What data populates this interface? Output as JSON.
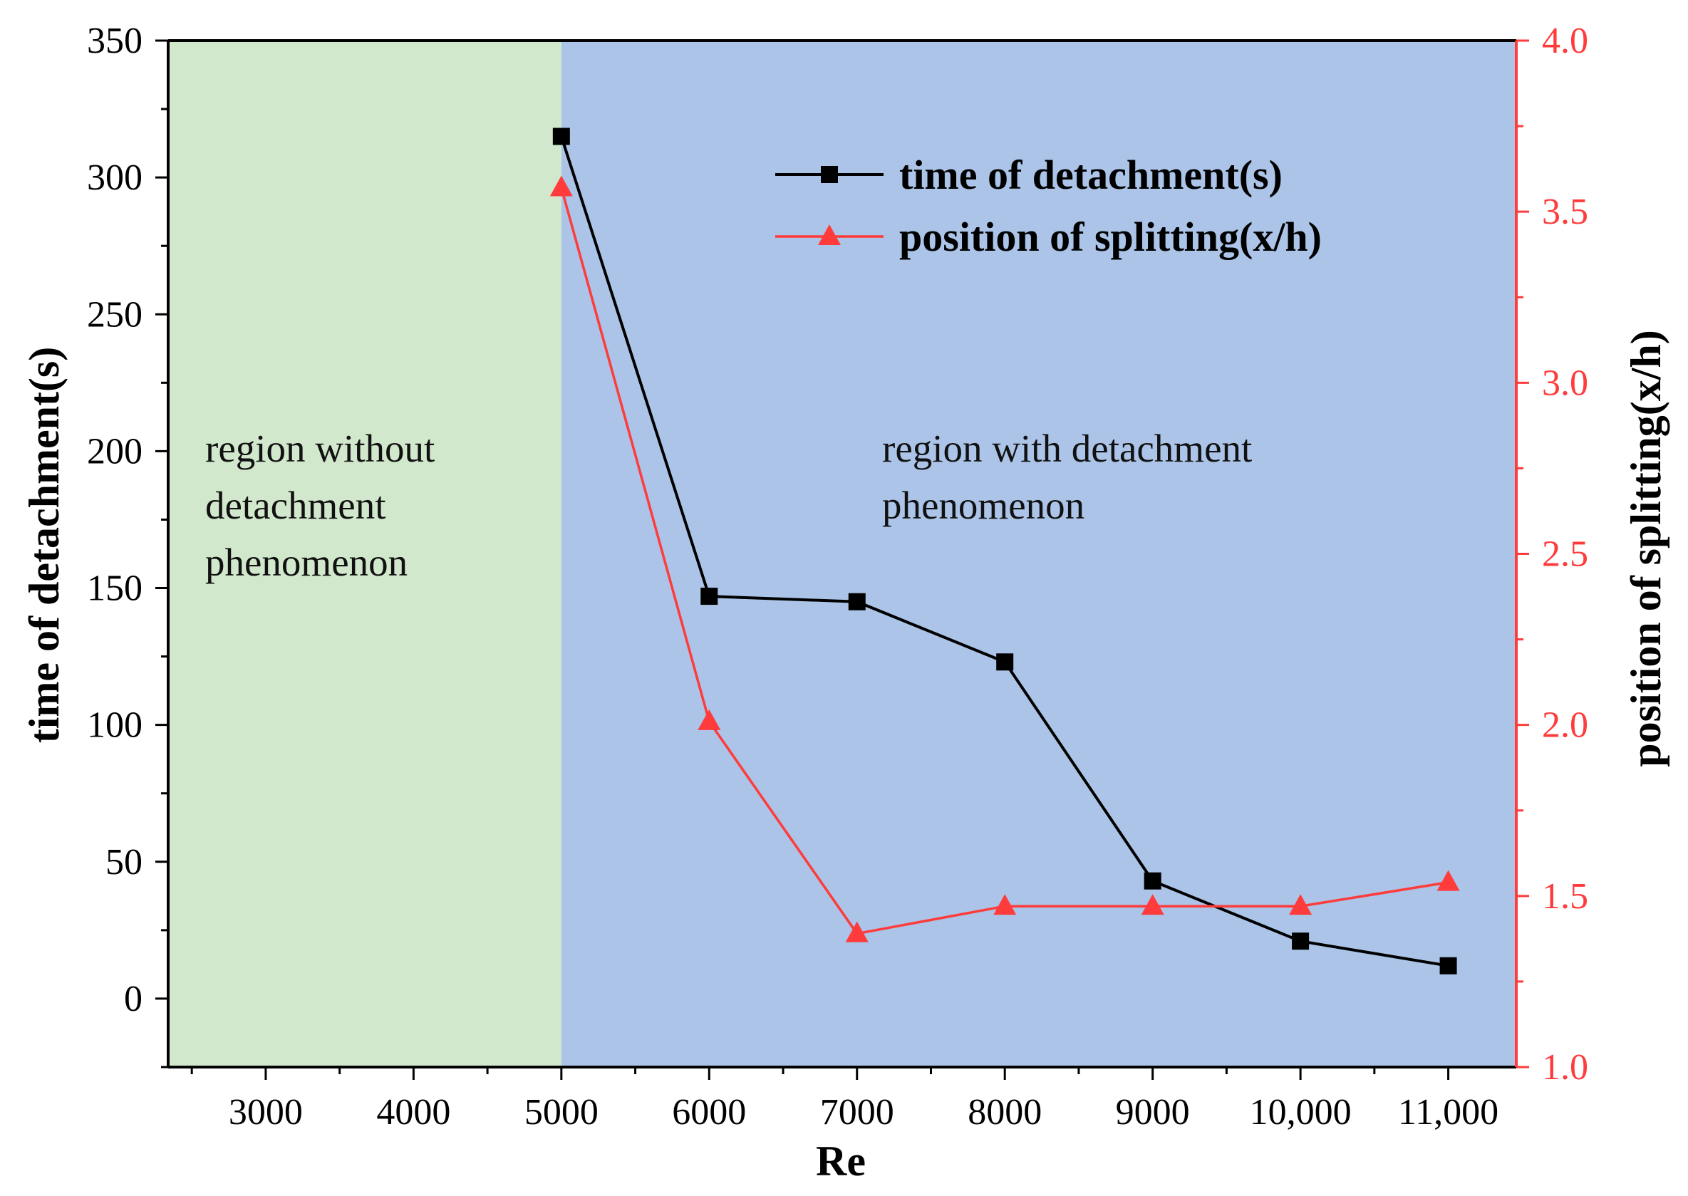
{
  "chart_data": {
    "type": "line",
    "xlabel": "Re",
    "ylabel_left": "time of detachment(s)",
    "ylabel_right": "position of splitting(x/h)",
    "xlim": [
      2340,
      11460
    ],
    "ylim_left": [
      -25,
      350
    ],
    "ylim_right": [
      1.0,
      4.0
    ],
    "x_ticks": [
      3000,
      4000,
      5000,
      6000,
      7000,
      8000,
      9000,
      10000,
      11000
    ],
    "x_tick_labels": [
      "3000",
      "4000",
      "5000",
      "6000",
      "7000",
      "8000",
      "9000",
      "10,000",
      "11,000"
    ],
    "y_left_ticks": [
      0,
      50,
      100,
      150,
      200,
      250,
      300,
      350
    ],
    "y_left_tick_labels": [
      "0",
      "50",
      "100",
      "150",
      "200",
      "250",
      "300",
      "350"
    ],
    "y_right_ticks": [
      1.0,
      1.5,
      2.0,
      2.5,
      3.0,
      3.5,
      4.0
    ],
    "y_right_tick_labels": [
      "1.0",
      "1.5",
      "2.0",
      "2.5",
      "3.0",
      "3.5",
      "4.0"
    ],
    "regions": [
      {
        "x_from": 2340,
        "x_to": 5000,
        "color": "#d2e8cc",
        "label": [
          "region without",
          "detachment",
          "phenomenon"
        ]
      },
      {
        "x_from": 5000,
        "x_to": 11460,
        "color": "#abc4e8",
        "label": [
          "region with detachment",
          "phenomenon"
        ]
      }
    ],
    "x": [
      5000,
      6000,
      7000,
      8000,
      9000,
      10000,
      11000
    ],
    "series": [
      {
        "name": "time of detachment(s)",
        "axis": "left",
        "marker": "square",
        "color": "#000000",
        "values": [
          315,
          147,
          145,
          123,
          43,
          21,
          12
        ]
      },
      {
        "name": "position of splitting(x/h)",
        "axis": "right",
        "marker": "triangle",
        "color": "#ff3b3b",
        "values": [
          3.57,
          2.01,
          1.39,
          1.47,
          1.47,
          1.47,
          1.54
        ]
      }
    ],
    "legend_position": "top-right"
  }
}
